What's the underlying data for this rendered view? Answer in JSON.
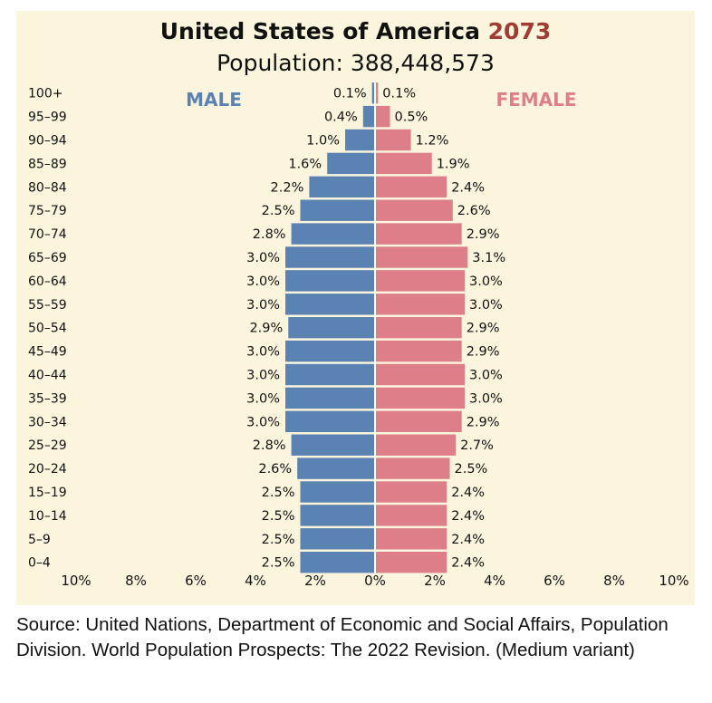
{
  "title": {
    "country": "United States of America",
    "year": "2073"
  },
  "subtitle": "Population: 388,448,573",
  "chart_data": {
    "type": "bar",
    "orientation": "horizontal-population-pyramid",
    "categories": [
      "100+",
      "95–99",
      "90–94",
      "85–89",
      "80–84",
      "75–79",
      "70–74",
      "65–69",
      "60–64",
      "55–59",
      "50–54",
      "45–49",
      "40–44",
      "35–39",
      "30–34",
      "25–29",
      "20–24",
      "15–19",
      "10–14",
      "5–9",
      "0–4"
    ],
    "series": [
      {
        "name": "MALE",
        "color": "#5a82b3",
        "values": [
          0.1,
          0.4,
          1.0,
          1.6,
          2.2,
          2.5,
          2.8,
          3.0,
          3.0,
          3.0,
          2.9,
          3.0,
          3.0,
          3.0,
          3.0,
          2.8,
          2.6,
          2.5,
          2.5,
          2.5,
          2.5
        ],
        "labels": [
          "0.1%",
          "0.4%",
          "1.0%",
          "1.6%",
          "2.2%",
          "2.5%",
          "2.8%",
          "3.0%",
          "3.0%",
          "3.0%",
          "2.9%",
          "3.0%",
          "3.0%",
          "3.0%",
          "3.0%",
          "2.8%",
          "2.6%",
          "2.5%",
          "2.5%",
          "2.5%",
          "2.5%"
        ]
      },
      {
        "name": "FEMALE",
        "color": "#de7e88",
        "values": [
          0.1,
          0.5,
          1.2,
          1.9,
          2.4,
          2.6,
          2.9,
          3.1,
          3.0,
          3.0,
          2.9,
          2.9,
          3.0,
          3.0,
          2.9,
          2.7,
          2.5,
          2.4,
          2.4,
          2.4,
          2.4
        ],
        "labels": [
          "0.1%",
          "0.5%",
          "1.2%",
          "1.9%",
          "2.4%",
          "2.6%",
          "2.9%",
          "3.1%",
          "3.0%",
          "3.0%",
          "2.9%",
          "2.9%",
          "3.0%",
          "3.0%",
          "2.9%",
          "2.7%",
          "2.5%",
          "2.4%",
          "2.4%",
          "2.4%",
          "2.4%"
        ]
      }
    ],
    "xlim": [
      -10,
      10
    ],
    "xticks": [
      "10%",
      "8%",
      "6%",
      "4%",
      "2%",
      "0%",
      "2%",
      "4%",
      "6%",
      "8%",
      "10%"
    ],
    "grid": false,
    "legend": "top, inside plot"
  },
  "source": "Source: United Nations, Department of Economic and Social Affairs, Population Division. World Population Prospects: The 2022 Revision. (Medium variant)"
}
